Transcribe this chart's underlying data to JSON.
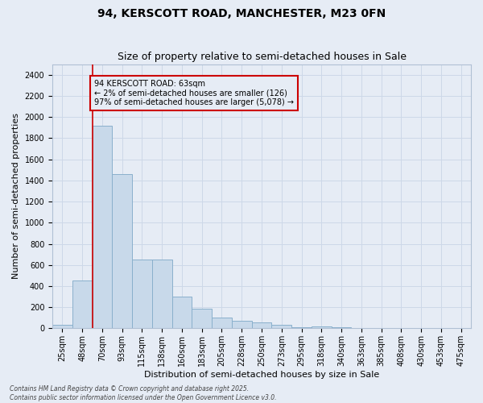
{
  "title1": "94, KERSCOTT ROAD, MANCHESTER, M23 0FN",
  "title2": "Size of property relative to semi-detached houses in Sale",
  "xlabel": "Distribution of semi-detached houses by size in Sale",
  "ylabel": "Number of semi-detached properties",
  "categories": [
    "25sqm",
    "48sqm",
    "70sqm",
    "93sqm",
    "115sqm",
    "138sqm",
    "160sqm",
    "183sqm",
    "205sqm",
    "228sqm",
    "250sqm",
    "273sqm",
    "295sqm",
    "318sqm",
    "340sqm",
    "363sqm",
    "385sqm",
    "408sqm",
    "430sqm",
    "453sqm",
    "475sqm"
  ],
  "values": [
    30,
    450,
    1920,
    1460,
    650,
    650,
    300,
    190,
    100,
    75,
    55,
    35,
    10,
    20,
    10,
    5,
    5,
    2,
    2,
    1,
    0
  ],
  "bar_color": "#c8d9ea",
  "bar_edge_color": "#8ab0cc",
  "grid_color": "#cdd8e8",
  "bg_color": "#e6ecf5",
  "vline_color": "#cc0000",
  "vline_pos": 1.5,
  "annotation_text": "94 KERSCOTT ROAD: 63sqm\n← 2% of semi-detached houses are smaller (126)\n97% of semi-detached houses are larger (5,078) →",
  "annotation_box_edgecolor": "#cc0000",
  "ylim": [
    0,
    2500
  ],
  "yticks": [
    0,
    200,
    400,
    600,
    800,
    1000,
    1200,
    1400,
    1600,
    1800,
    2000,
    2200,
    2400
  ],
  "footer": "Contains HM Land Registry data © Crown copyright and database right 2025.\nContains public sector information licensed under the Open Government Licence v3.0.",
  "title_fontsize": 10,
  "subtitle_fontsize": 9,
  "tick_fontsize": 7,
  "ylabel_fontsize": 8,
  "xlabel_fontsize": 8,
  "annotation_fontsize": 7,
  "footer_fontsize": 5.5
}
